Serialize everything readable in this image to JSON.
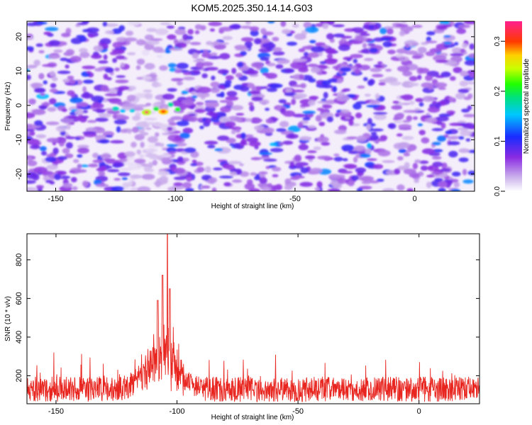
{
  "title": "KOM5.2025.350.14.14.G03",
  "colors": {
    "signal": "#e8251f",
    "background": "#ffffff",
    "axis": "#000000"
  },
  "chart_data": [
    {
      "type": "heatmap",
      "title": "KOM5.2025.350.14.14.G03",
      "xlabel": "Height of straight line (km)",
      "ylabel": "Frequency (Hz)",
      "xlim": [
        -162,
        25
      ],
      "ylim": [
        -25,
        24.5
      ],
      "xticks": [
        -150,
        -100,
        -50,
        0
      ],
      "xtick_labels": [
        "-150",
        "-100",
        "-50",
        "0"
      ],
      "yticks": [
        -20,
        -10,
        0,
        10,
        20
      ],
      "ytick_labels": [
        "-20",
        "-10",
        "0",
        "10",
        "20"
      ],
      "colorbar": {
        "label": "Normalized spectral amplitude",
        "range": [
          0,
          0.34
        ],
        "ticks": [
          0.0,
          0.1,
          0.2,
          0.3
        ],
        "tick_labels": [
          "0.0",
          "0.1",
          "0.2",
          "0.3"
        ],
        "colormap": "rainbow (white - purple - blue - cyan - green - yellow - red - magenta)"
      },
      "features": [
        {
          "label": "strong signal cluster",
          "x_km": -112,
          "freq_hz": -1.5,
          "amplitude": 0.33
        },
        {
          "label": "strong signal cluster",
          "x_km": -105,
          "freq_hz": -1.8,
          "amplitude": 0.3
        },
        {
          "label": "moderate signal",
          "x_km": -125,
          "freq_hz": -1.0,
          "amplitude": 0.18
        },
        {
          "label": "low-amplitude gap band",
          "x_km": -110,
          "freq_hz": 0,
          "amplitude": 0.02
        }
      ],
      "background_amplitude_range": [
        0.02,
        0.12
      ]
    },
    {
      "type": "line",
      "xlabel": "Height of straight line (km)",
      "ylabel": "SNR (10 * v/v)",
      "xlim": [
        -162,
        25
      ],
      "ylim": [
        55,
        935
      ],
      "xticks": [
        -150,
        -100,
        -50,
        0
      ],
      "xtick_labels": [
        "-150",
        "-100",
        "-50",
        "0"
      ],
      "yticks": [
        200,
        400,
        600,
        800
      ],
      "ytick_labels": [
        "200",
        "400",
        "600",
        "800"
      ],
      "series": [
        {
          "name": "SNR",
          "color": "#e8251f",
          "baseline_mean": 130,
          "baseline_spread": [
            60,
            290
          ],
          "peak": {
            "x_km": -104,
            "y": 935
          },
          "secondary_peaks": [
            {
              "x_km": -108,
              "y": 590
            },
            {
              "x_km": -106,
              "y": 720
            },
            {
              "x_km": -103,
              "y": 650
            }
          ],
          "elevated_region_km": [
            -130,
            -95
          ]
        }
      ]
    }
  ]
}
